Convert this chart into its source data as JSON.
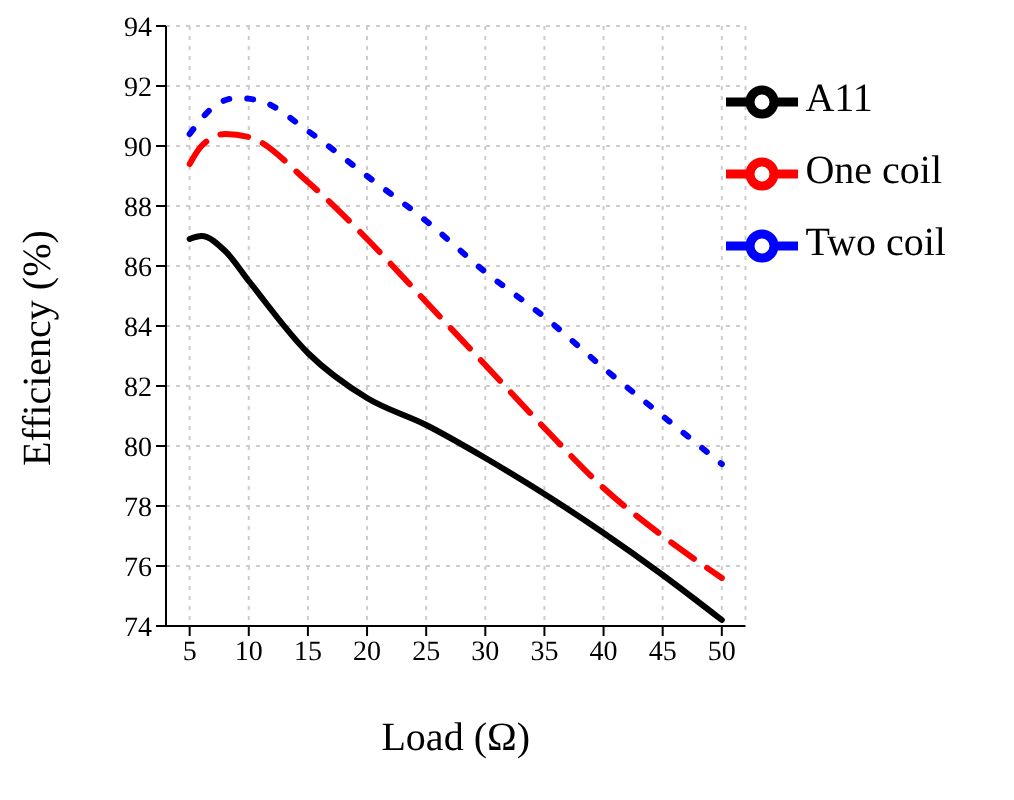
{
  "chart_data": {
    "type": "line",
    "xlabel": "Load (Ω)",
    "ylabel": "Efficiency (%)",
    "xlim": [
      3,
      52
    ],
    "xticks": [
      5,
      10,
      15,
      20,
      25,
      30,
      35,
      40,
      45,
      50
    ],
    "ylim": [
      74,
      94
    ],
    "yticks": [
      74,
      76,
      78,
      80,
      82,
      84,
      86,
      88,
      90,
      92,
      94
    ],
    "grid": true,
    "legend": "top right",
    "marker": "none",
    "series": [
      {
        "name": "A11",
        "color": "#000000",
        "line_style": "solid",
        "x": [
          5,
          6,
          8,
          10,
          15,
          20,
          25,
          30,
          35,
          40,
          45,
          50
        ],
        "values": [
          86.9,
          87.0,
          86.5,
          85.5,
          83.1,
          81.6,
          80.7,
          79.6,
          78.4,
          77.1,
          75.7,
          74.2
        ]
      },
      {
        "name": "One coil",
        "color": "#ff0000",
        "line_style": "dashed",
        "x": [
          5,
          6,
          8,
          10,
          15,
          20,
          25,
          30,
          35,
          40,
          45,
          50
        ],
        "values": [
          89.4,
          90.0,
          90.4,
          90.3,
          88.8,
          86.9,
          84.8,
          82.7,
          80.6,
          78.6,
          77.0,
          75.6
        ]
      },
      {
        "name": "Two coil",
        "color": "#0000ff",
        "line_style": "dotted",
        "x": [
          5,
          7,
          9,
          11,
          15,
          20,
          25,
          30,
          35,
          40,
          45,
          50
        ],
        "values": [
          90.4,
          91.3,
          91.6,
          91.5,
          90.5,
          89.0,
          87.5,
          85.8,
          84.3,
          82.6,
          81.0,
          79.4
        ]
      }
    ]
  }
}
